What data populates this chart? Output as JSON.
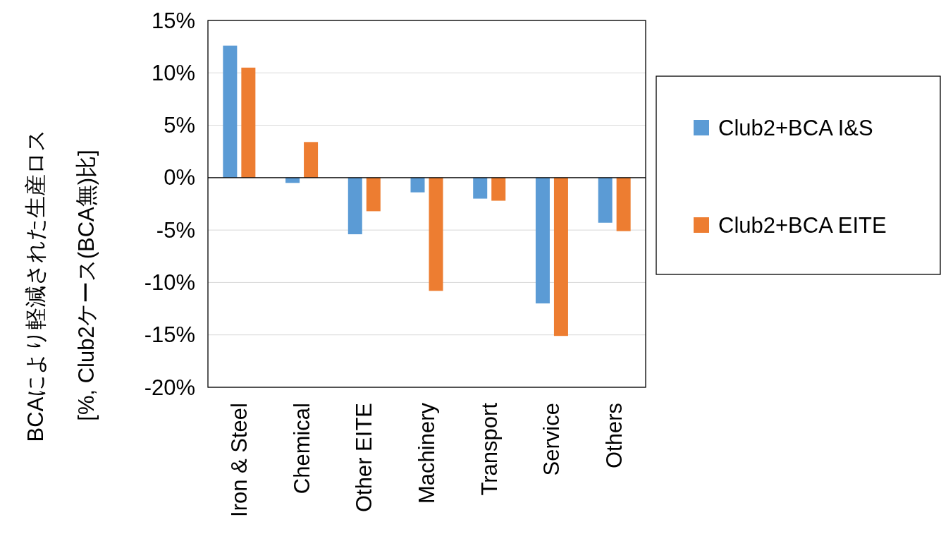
{
  "chart_data": {
    "type": "bar",
    "ylabel": "BCAにより軽減された生産ロス\n[%, Club2ケース(BCA無)比]",
    "categories": [
      "Iron & Steel",
      "Chemical",
      "Other EITE",
      "Machinery",
      "Transport",
      "Service",
      "Others"
    ],
    "series": [
      {
        "name": "Club2+BCA I&S",
        "color": "#5b9bd5",
        "values": [
          12.6,
          -0.5,
          -5.4,
          -1.4,
          -2.0,
          -12.0,
          -4.3
        ]
      },
      {
        "name": "Club2+BCA EITE",
        "color": "#ed7d31",
        "values": [
          10.5,
          3.4,
          -3.2,
          -10.8,
          -2.2,
          -15.1,
          -5.1
        ]
      }
    ],
    "ylim": [
      -20,
      15
    ],
    "yticks": [
      {
        "value": -20,
        "label": "-20%"
      },
      {
        "value": -15,
        "label": "-15%"
      },
      {
        "value": -10,
        "label": "-10%"
      },
      {
        "value": -5,
        "label": "-5%"
      },
      {
        "value": 0,
        "label": "0%"
      },
      {
        "value": 5,
        "label": "5%"
      },
      {
        "value": 10,
        "label": "10%"
      },
      {
        "value": 15,
        "label": "15%"
      }
    ],
    "grid": "y",
    "legend": "right"
  }
}
